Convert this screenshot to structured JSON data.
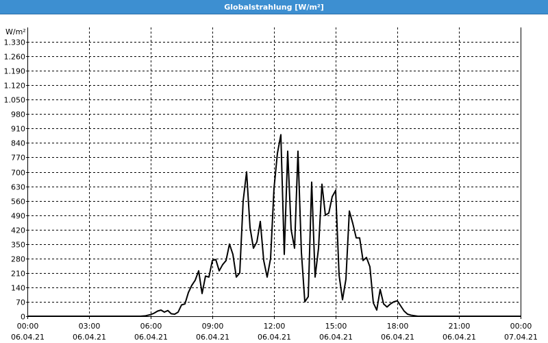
{
  "title": "Globalstrahlung [W/m²]",
  "colors": {
    "title_bar": "#3d8fd1",
    "title_text": "#ffffff",
    "grid": "#000000",
    "series": "#000000",
    "background": "#ffffff"
  },
  "chart_data": {
    "type": "line",
    "title": "Globalstrahlung [W/m²]",
    "ylabel": "W/m²",
    "xlabel": "",
    "ylim": [
      0,
      1400
    ],
    "yticks": [
      0,
      70,
      140,
      210,
      280,
      350,
      420,
      490,
      560,
      630,
      700,
      770,
      840,
      910,
      980,
      1050,
      1120,
      1190,
      1260,
      1330
    ],
    "ytick_labels": [
      "0",
      "70",
      "140",
      "210",
      "280",
      "350",
      "420",
      "490",
      "560",
      "630",
      "700",
      "770",
      "840",
      "910",
      "980",
      "1.050",
      "1.120",
      "1.190",
      "1.260",
      "1.330"
    ],
    "xlim": [
      "06.04.21 00:00",
      "07.04.21 00:00"
    ],
    "xticks": [
      {
        "time": "00:00",
        "date": "06.04.21"
      },
      {
        "time": "03:00",
        "date": "06.04.21"
      },
      {
        "time": "06:00",
        "date": "06.04.21"
      },
      {
        "time": "09:00",
        "date": "06.04.21"
      },
      {
        "time": "12:00",
        "date": "06.04.21"
      },
      {
        "time": "15:00",
        "date": "06.04.21"
      },
      {
        "time": "18:00",
        "date": "06.04.21"
      },
      {
        "time": "21:00",
        "date": "06.04.21"
      },
      {
        "time": "00:00",
        "date": "07.04.21"
      }
    ],
    "grid": true,
    "legend": "none",
    "series": [
      {
        "x": [
          "00:00",
          "05:30",
          "05:45",
          "06:00",
          "06:10",
          "06:20",
          "06:30",
          "06:40",
          "06:50",
          "07:00",
          "07:10",
          "07:20",
          "07:30",
          "07:40",
          "07:50",
          "08:00",
          "08:10",
          "08:20",
          "08:30",
          "08:40",
          "08:50",
          "09:00",
          "09:10",
          "09:20",
          "09:30",
          "09:40",
          "09:50",
          "10:00",
          "10:10",
          "10:20",
          "10:30",
          "10:40",
          "10:50",
          "11:00",
          "11:10",
          "11:20",
          "11:30",
          "11:40",
          "11:50",
          "12:00",
          "12:10",
          "12:20",
          "12:30",
          "12:40",
          "12:50",
          "13:00",
          "13:10",
          "13:20",
          "13:30",
          "13:40",
          "13:50",
          "14:00",
          "14:10",
          "14:20",
          "14:30",
          "14:40",
          "14:50",
          "15:00",
          "15:10",
          "15:20",
          "15:30",
          "15:40",
          "15:50",
          "16:00",
          "16:10",
          "16:20",
          "16:30",
          "16:40",
          "16:50",
          "17:00",
          "17:10",
          "17:20",
          "17:30",
          "17:40",
          "17:50",
          "18:00",
          "18:10",
          "18:20",
          "18:30",
          "18:40",
          "19:00",
          "19:30",
          "24:00"
        ],
        "values": [
          0,
          0,
          2,
          8,
          15,
          25,
          30,
          20,
          28,
          12,
          10,
          20,
          55,
          60,
          115,
          150,
          175,
          220,
          110,
          195,
          190,
          270,
          275,
          220,
          250,
          270,
          350,
          300,
          190,
          210,
          560,
          700,
          430,
          330,
          360,
          460,
          270,
          190,
          280,
          620,
          790,
          880,
          300,
          800,
          420,
          330,
          800,
          310,
          70,
          95,
          650,
          190,
          330,
          640,
          490,
          500,
          580,
          610,
          200,
          80,
          180,
          510,
          450,
          380,
          380,
          270,
          285,
          240,
          65,
          30,
          130,
          60,
          45,
          60,
          70,
          75,
          50,
          25,
          10,
          5,
          0,
          0,
          0
        ]
      }
    ]
  }
}
